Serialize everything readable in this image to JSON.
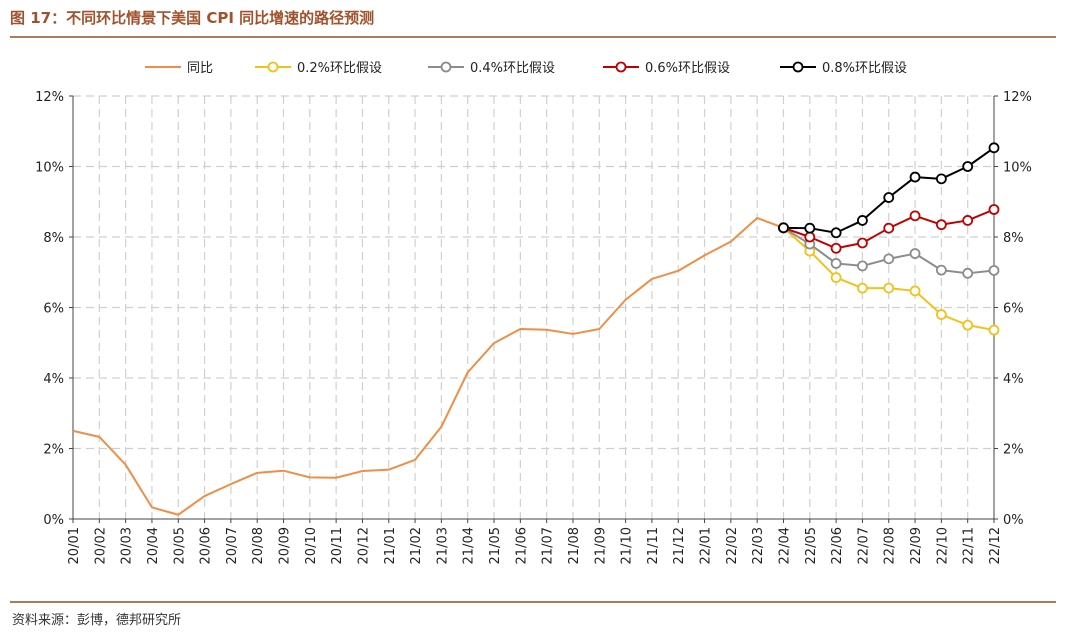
{
  "header": {
    "title": "图 17：不同环比情景下美国 CPI 同比增速的路径预测"
  },
  "footer": {
    "source": "资料来源：彭博，德邦研究所"
  },
  "colors": {
    "yoy": "#ed8f47",
    "s02": "#f2c21b",
    "s04": "#8c8c8c",
    "s06": "#c00000",
    "s08": "#000000",
    "grid": "#d0d0d0",
    "rule": "#b07a55"
  },
  "chart_data": {
    "type": "line",
    "x": [
      "20/01",
      "20/02",
      "20/03",
      "20/04",
      "20/05",
      "20/06",
      "20/07",
      "20/08",
      "20/09",
      "20/10",
      "20/11",
      "20/12",
      "21/01",
      "21/02",
      "21/03",
      "21/04",
      "21/05",
      "21/06",
      "21/07",
      "21/08",
      "21/09",
      "21/10",
      "21/11",
      "21/12",
      "22/01",
      "22/02",
      "22/03",
      "22/04",
      "22/05",
      "22/06",
      "22/07",
      "22/08",
      "22/09",
      "22/10",
      "22/11",
      "22/12"
    ],
    "ylim": [
      0,
      12
    ],
    "yticks": [
      "0%",
      "2%",
      "4%",
      "6%",
      "8%",
      "10%",
      "12%"
    ],
    "legend_position": "top",
    "grid": "horizontal-and-vertical-dashed",
    "series": [
      {
        "name": "同比",
        "key": "yoy",
        "marker": false,
        "values": [
          2.5,
          2.33,
          1.54,
          0.33,
          0.12,
          0.65,
          0.99,
          1.31,
          1.37,
          1.18,
          1.17,
          1.36,
          1.4,
          1.68,
          2.62,
          4.16,
          4.99,
          5.39,
          5.37,
          5.25,
          5.39,
          6.22,
          6.81,
          7.04,
          7.48,
          7.87,
          8.54,
          8.26,
          null,
          null,
          null,
          null,
          null,
          null,
          null,
          null
        ]
      },
      {
        "name": "0.2%环比假设",
        "key": "s02",
        "marker": true,
        "values": [
          null,
          null,
          null,
          null,
          null,
          null,
          null,
          null,
          null,
          null,
          null,
          null,
          null,
          null,
          null,
          null,
          null,
          null,
          null,
          null,
          null,
          null,
          null,
          null,
          null,
          null,
          null,
          8.26,
          7.6,
          6.85,
          6.55,
          6.55,
          6.47,
          5.8,
          5.5,
          5.36
        ]
      },
      {
        "name": "0.4%环比假设",
        "key": "s04",
        "marker": true,
        "values": [
          null,
          null,
          null,
          null,
          null,
          null,
          null,
          null,
          null,
          null,
          null,
          null,
          null,
          null,
          null,
          null,
          null,
          null,
          null,
          null,
          null,
          null,
          null,
          null,
          null,
          null,
          null,
          8.26,
          7.8,
          7.25,
          7.18,
          7.38,
          7.53,
          7.06,
          6.97,
          7.05
        ]
      },
      {
        "name": "0.6%环比假设",
        "key": "s06",
        "marker": true,
        "values": [
          null,
          null,
          null,
          null,
          null,
          null,
          null,
          null,
          null,
          null,
          null,
          null,
          null,
          null,
          null,
          null,
          null,
          null,
          null,
          null,
          null,
          null,
          null,
          null,
          null,
          null,
          null,
          8.26,
          8.0,
          7.68,
          7.83,
          8.25,
          8.6,
          8.35,
          8.47,
          8.78
        ]
      },
      {
        "name": "0.8%环比假设",
        "key": "s08",
        "marker": true,
        "values": [
          null,
          null,
          null,
          null,
          null,
          null,
          null,
          null,
          null,
          null,
          null,
          null,
          null,
          null,
          null,
          null,
          null,
          null,
          null,
          null,
          null,
          null,
          null,
          null,
          null,
          null,
          null,
          8.26,
          8.25,
          8.12,
          8.47,
          9.12,
          9.7,
          9.65,
          10.0,
          10.53
        ]
      }
    ]
  }
}
